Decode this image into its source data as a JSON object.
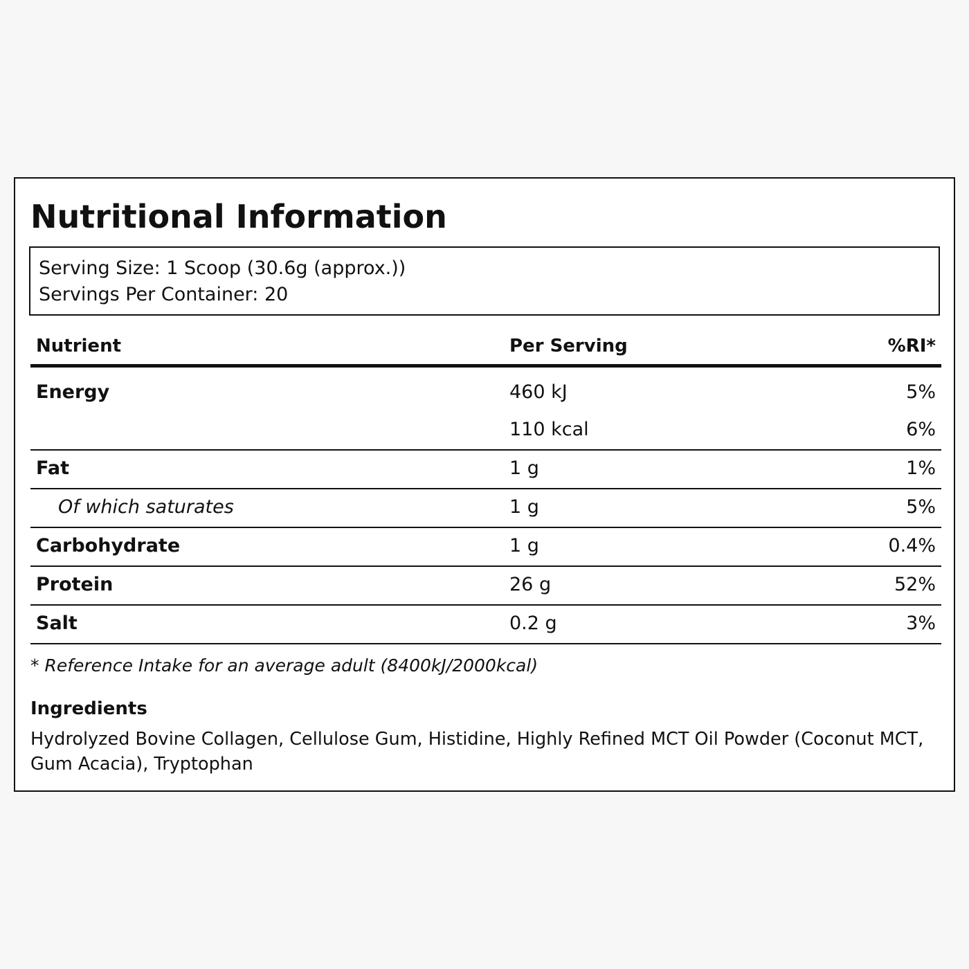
{
  "title": "Nutritional Information",
  "serving": {
    "size": "Serving Size: 1 Scoop (30.6g (approx.))",
    "per_container": "Servings Per Container: 20"
  },
  "table": {
    "headers": {
      "nutrient": "Nutrient",
      "per_serving": "Per Serving",
      "ri": "%RI*"
    },
    "energy": {
      "name": "Energy",
      "kj": "460 kJ",
      "kj_ri": "5%",
      "kcal": "110 kcal",
      "kcal_ri": "6%"
    },
    "rows": [
      {
        "name": "Fat",
        "value": "1 g",
        "ri": "1%"
      },
      {
        "name": "Of which saturates",
        "value": "1 g",
        "ri": "5%"
      },
      {
        "name": "Carbohydrate",
        "value": "1 g",
        "ri": "0.4%"
      },
      {
        "name": "Protein",
        "value": "26 g",
        "ri": "52%"
      },
      {
        "name": "Salt",
        "value": "0.2 g",
        "ri": "3%"
      }
    ]
  },
  "footnote": "* Reference Intake for an average adult (8400kJ/2000kcal)",
  "ingredients": {
    "title": "Ingredients",
    "text": "Hydrolyzed Bovine Collagen, Cellulose Gum, Histidine, Highly Refined MCT Oil Powder (Coconut MCT, Gum Acacia), Tryptophan"
  }
}
